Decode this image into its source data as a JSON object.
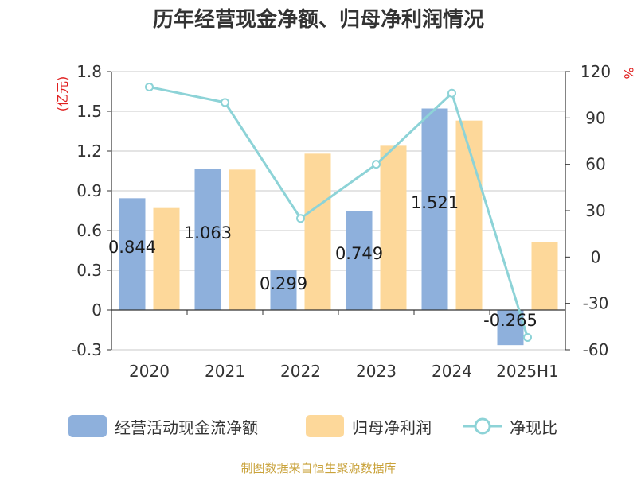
{
  "chart_data": {
    "type": "bar",
    "title": "历年经营现金净额、归母净利润情况",
    "categories": [
      "2020",
      "2021",
      "2022",
      "2023",
      "2024",
      "2025H1"
    ],
    "series": [
      {
        "name": "经营活动现金流净额",
        "type": "bar",
        "axis": "left",
        "color": "#8eb0dc",
        "values": [
          0.844,
          1.063,
          0.299,
          0.749,
          1.521,
          -0.265
        ]
      },
      {
        "name": "归母净利润",
        "type": "bar",
        "axis": "left",
        "color": "#fdd89a",
        "values": [
          0.77,
          1.06,
          1.18,
          1.24,
          1.43,
          0.51
        ]
      },
      {
        "name": "净现比",
        "type": "line",
        "axis": "right",
        "color": "#8dd3d7",
        "values": [
          110,
          100,
          25,
          60,
          106,
          -52
        ]
      }
    ],
    "data_labels": [
      "0.844",
      "1.063",
      "0.299",
      "0.749",
      "1.521",
      "-0.265"
    ],
    "y_left": {
      "label": "(亿元)",
      "min": -0.3,
      "max": 1.8,
      "ticks": [
        1.8,
        1.5,
        1.2,
        0.9,
        0.6,
        0.3,
        0,
        -0.3
      ],
      "tick_labels": [
        "1.8",
        "1.5",
        "1.2",
        "0.9",
        "0.6",
        "0.3",
        "0",
        "-0.3"
      ]
    },
    "y_right": {
      "label": "%",
      "min": -60,
      "max": 120,
      "ticks": [
        120,
        90,
        60,
        30,
        0,
        -30,
        -60
      ],
      "tick_labels": [
        "120",
        "90",
        "60",
        "30",
        "0",
        "-30",
        "-60"
      ]
    },
    "grid": true,
    "legend_position": "bottom",
    "axis_label_color": "#e02020"
  },
  "source": "制图数据来自恒生聚源数据库"
}
